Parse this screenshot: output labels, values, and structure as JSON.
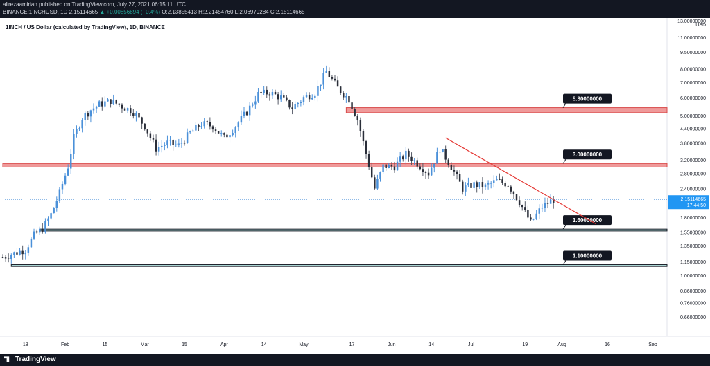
{
  "header": {
    "author_line": "alirezaamirian published on TradingView.com, July 27, 2021 06:15:11 UTC",
    "ticker_line_prefix": "BINANCE:1INCHUSD, 1D  2.15114665 ",
    "change_text": "▲ +0.00856894 (+0.4%)",
    "ohlc_text": " O:2.13855413 H:2.21454760 L:2.06979284 C:2.15114665"
  },
  "footer": {
    "brand": "TradingView"
  },
  "chart_data": {
    "type": "candlestick",
    "title": "1INCH / US Dollar (calculated by TradingView), 1D, BINANCE",
    "currency_label": "USD",
    "y_scale": "log",
    "ylim": [
      0.55,
      13.0
    ],
    "y_ticks": [
      "13.00000000",
      "11.00000000",
      "9.50000000",
      "8.00000000",
      "7.00000000",
      "6.00000000",
      "5.00000000",
      "4.40000000",
      "3.80000000",
      "3.20000000",
      "2.80000000",
      "2.40000000",
      "2.10000000",
      "1.80000000",
      "1.55000000",
      "1.35000000",
      "1.15000000",
      "1.00000000",
      "0.86000000",
      "0.76000000",
      "0.66000000"
    ],
    "x_ticks": [
      "18",
      "Feb",
      "15",
      "Mar",
      "15",
      "Apr",
      "14",
      "May",
      "17",
      "Jun",
      "14",
      "Jul",
      "19",
      "Aug",
      "16",
      "Sep"
    ],
    "x_tick_days": [
      0,
      14,
      28,
      42,
      56,
      70,
      84,
      98,
      115,
      129,
      143,
      157,
      176,
      189,
      205,
      221
    ],
    "xlim_days": [
      -8,
      226
    ],
    "colors": {
      "up": "#4a90d9",
      "down": "#2a2e39",
      "wick_up": "#4a90d9",
      "wick_down": "#555a66",
      "support_line": "#26a69a",
      "resistance_zone": "#ef9a9a",
      "resistance_line": "#d84a4a",
      "trendline": "#e53935"
    },
    "current_price_label": "2.15114665",
    "countdown_label": "17:44:50",
    "current_price": 2.15114665,
    "horizontal_levels": [
      {
        "label": "5.30000000",
        "low": 5.15,
        "high": 5.42,
        "style": "zone-red",
        "x_start_day": 113
      },
      {
        "label": "3.00000000",
        "low": 2.98,
        "high": 3.09,
        "style": "zone-red",
        "x_start_day": -8
      },
      {
        "label": "1.60000000",
        "low": 1.565,
        "high": 1.595,
        "style": "line-teal",
        "x_start_day": 5
      },
      {
        "label": "1.10000000",
        "low": 1.095,
        "high": 1.115,
        "style": "line-teal",
        "x_start_day": -5
      }
    ],
    "trendline": {
      "start_day": 148,
      "start_price": 4.0,
      "end_day": 201,
      "end_price": 1.68
    },
    "candles_anchor_prices": [
      [
        -8,
        1.2
      ],
      [
        -4,
        1.25
      ],
      [
        0,
        1.3
      ],
      [
        3,
        1.5
      ],
      [
        6,
        1.6
      ],
      [
        9,
        1.85
      ],
      [
        12,
        2.3
      ],
      [
        15,
        3.0
      ],
      [
        17,
        4.0
      ],
      [
        20,
        4.9
      ],
      [
        23,
        5.3
      ],
      [
        26,
        5.6
      ],
      [
        30,
        5.8
      ],
      [
        34,
        5.5
      ],
      [
        38,
        5.2
      ],
      [
        42,
        4.5
      ],
      [
        46,
        3.6
      ],
      [
        50,
        3.8
      ],
      [
        54,
        3.7
      ],
      [
        58,
        4.2
      ],
      [
        62,
        4.6
      ],
      [
        66,
        4.5
      ],
      [
        70,
        4.0
      ],
      [
        74,
        4.5
      ],
      [
        78,
        5.2
      ],
      [
        82,
        6.2
      ],
      [
        86,
        6.3
      ],
      [
        90,
        6.0
      ],
      [
        94,
        5.4
      ],
      [
        98,
        6.0
      ],
      [
        102,
        6.3
      ],
      [
        106,
        7.8
      ],
      [
        110,
        6.6
      ],
      [
        114,
        5.9
      ],
      [
        117,
        4.8
      ],
      [
        120,
        3.4
      ],
      [
        123,
        2.4
      ],
      [
        126,
        3.0
      ],
      [
        130,
        3.0
      ],
      [
        134,
        3.4
      ],
      [
        138,
        3.1
      ],
      [
        142,
        2.8
      ],
      [
        146,
        3.6
      ],
      [
        150,
        3.0
      ],
      [
        154,
        2.4
      ],
      [
        158,
        2.5
      ],
      [
        162,
        2.45
      ],
      [
        166,
        2.6
      ],
      [
        170,
        2.5
      ],
      [
        174,
        2.1
      ],
      [
        178,
        1.7
      ],
      [
        182,
        2.0
      ],
      [
        186,
        2.15
      ]
    ]
  }
}
